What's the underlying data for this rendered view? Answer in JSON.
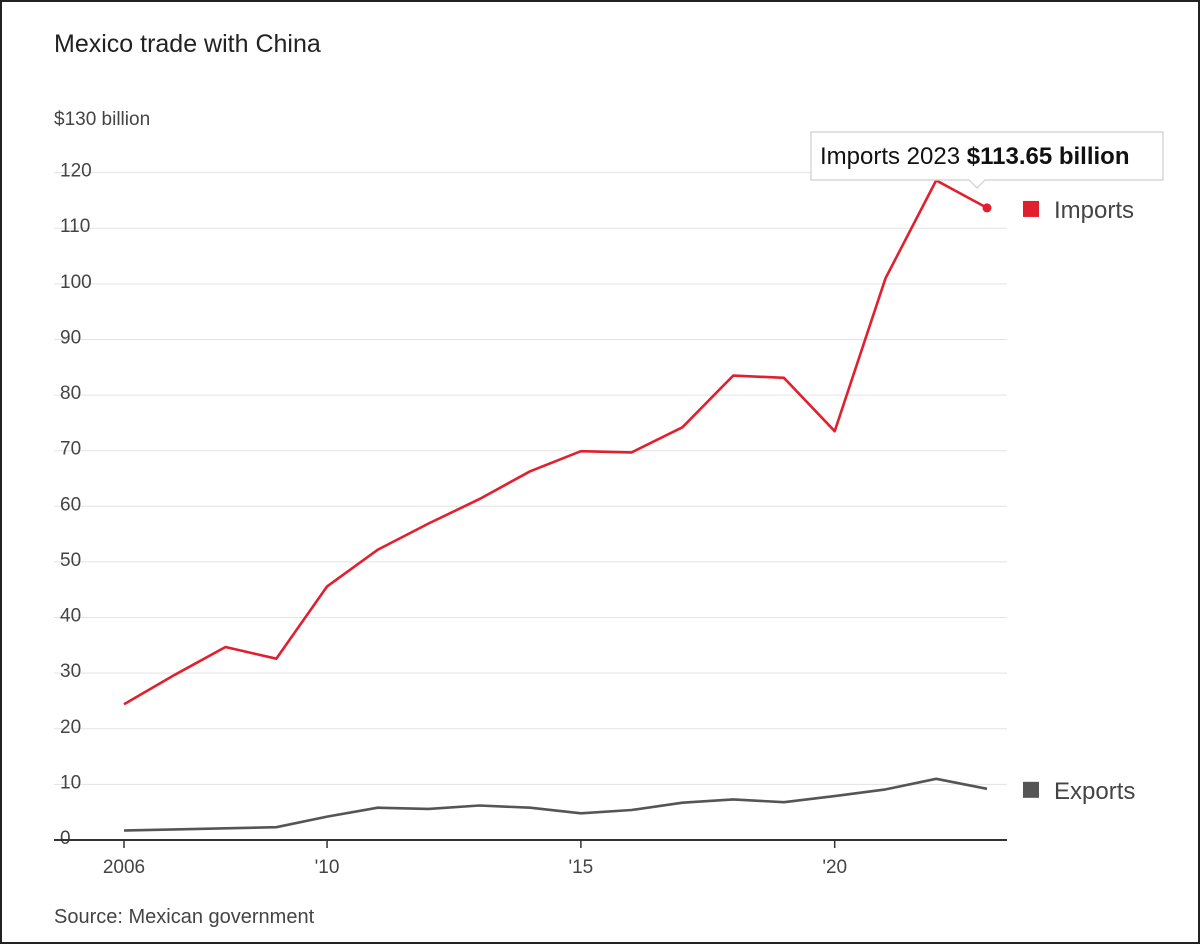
{
  "chart_data": {
    "type": "line",
    "title": "Mexico trade with China",
    "ylabel": "$130 billion",
    "ylim": [
      0,
      130
    ],
    "yticks": [
      0,
      10,
      20,
      30,
      40,
      50,
      60,
      70,
      80,
      90,
      100,
      110,
      120
    ],
    "xlim": [
      2006,
      2023
    ],
    "xticks": [
      {
        "value": 2006,
        "label": "2006"
      },
      {
        "value": 2010,
        "label": "'10"
      },
      {
        "value": 2015,
        "label": "'15"
      },
      {
        "value": 2020,
        "label": "'20"
      }
    ],
    "grid": true,
    "series": [
      {
        "name": "Imports",
        "color": "#e0202e",
        "x": [
          2006,
          2007,
          2008,
          2009,
          2010,
          2011,
          2012,
          2013,
          2014,
          2015,
          2016,
          2017,
          2018,
          2019,
          2020,
          2021,
          2022,
          2023
        ],
        "values": [
          24.4,
          29.7,
          34.7,
          32.6,
          45.6,
          52.2,
          56.9,
          61.3,
          66.3,
          69.9,
          69.7,
          74.2,
          83.5,
          83.1,
          73.5,
          101.0,
          118.6,
          113.65
        ]
      },
      {
        "name": "Exports",
        "color": "#555555",
        "x": [
          2006,
          2007,
          2008,
          2009,
          2010,
          2011,
          2012,
          2013,
          2014,
          2015,
          2016,
          2017,
          2018,
          2019,
          2020,
          2021,
          2022,
          2023
        ],
        "values": [
          1.7,
          1.9,
          2.1,
          2.3,
          4.2,
          5.8,
          5.6,
          6.2,
          5.8,
          4.8,
          5.4,
          6.7,
          7.3,
          6.8,
          7.9,
          9.1,
          11.0,
          9.2
        ]
      }
    ],
    "tooltip": {
      "series": "Imports",
      "x": 2023,
      "prefix": "Imports 2023",
      "value_label": "$113.65 billion"
    },
    "source": "Source: Mexican government"
  }
}
